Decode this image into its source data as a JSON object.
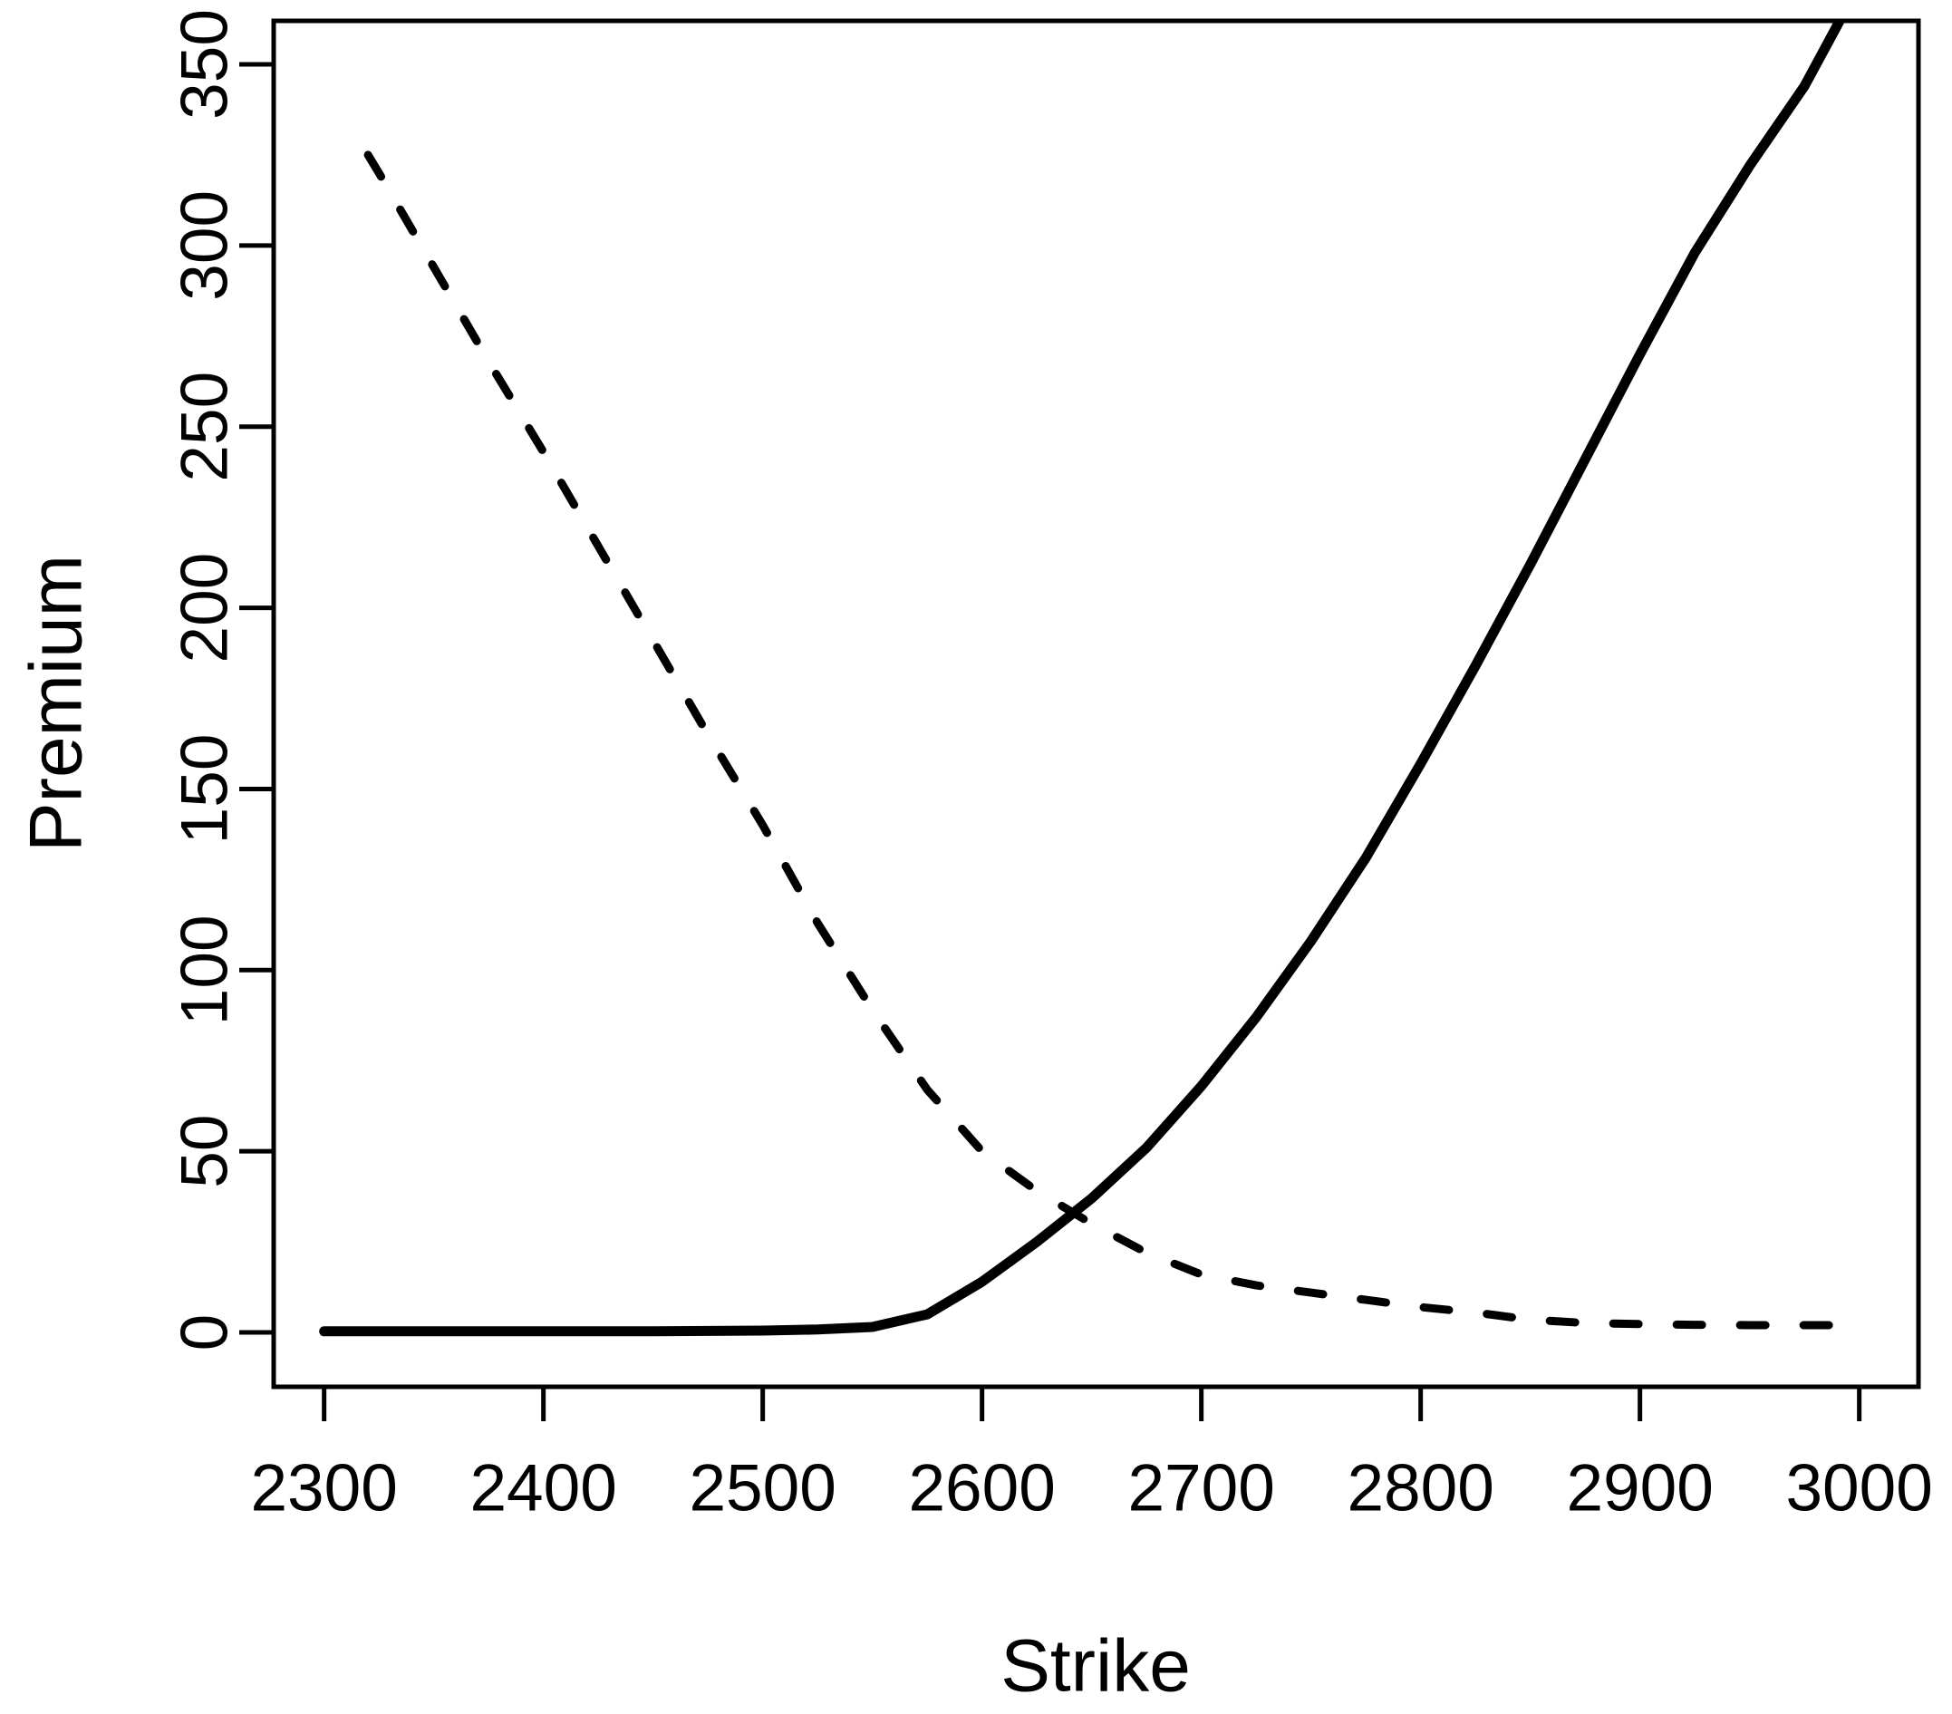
{
  "chart_data": {
    "type": "line",
    "title": "",
    "xlabel": "Strike",
    "ylabel": "Premium",
    "x_ticks": [
      2300,
      2400,
      2500,
      2600,
      2700,
      2800,
      2900,
      3000
    ],
    "y_ticks": [
      0,
      50,
      100,
      150,
      200,
      250,
      300,
      350
    ],
    "xlim": [
      2277,
      3027
    ],
    "ylim": [
      -15,
      362
    ],
    "grid": false,
    "legend": "none",
    "background": "#ffffff",
    "line_color": "#000000",
    "series": [
      {
        "name": "solid-line",
        "style": "solid",
        "color": "#000000",
        "points": [
          [
            2300,
            0.3
          ],
          [
            2350,
            0.3
          ],
          [
            2400,
            0.3
          ],
          [
            2450,
            0.3
          ],
          [
            2500,
            0.5
          ],
          [
            2525,
            0.8
          ],
          [
            2550,
            1.5
          ],
          [
            2575,
            5
          ],
          [
            2600,
            14
          ],
          [
            2625,
            25
          ],
          [
            2650,
            37
          ],
          [
            2675,
            51
          ],
          [
            2700,
            68
          ],
          [
            2725,
            87
          ],
          [
            2750,
            108
          ],
          [
            2775,
            131
          ],
          [
            2800,
            157
          ],
          [
            2825,
            184
          ],
          [
            2850,
            212
          ],
          [
            2875,
            241
          ],
          [
            2900,
            270
          ],
          [
            2925,
            298
          ],
          [
            2950,
            322
          ],
          [
            2975,
            344
          ],
          [
            3000,
            372
          ]
        ]
      },
      {
        "name": "dashed-line",
        "style": "dashed",
        "color": "#000000",
        "points": [
          [
            2320,
            325
          ],
          [
            2325,
            320
          ],
          [
            2350,
            294
          ],
          [
            2375,
            268
          ],
          [
            2400,
            243
          ],
          [
            2425,
            217
          ],
          [
            2450,
            191
          ],
          [
            2475,
            165
          ],
          [
            2500,
            140
          ],
          [
            2525,
            113
          ],
          [
            2550,
            89
          ],
          [
            2575,
            67
          ],
          [
            2600,
            50
          ],
          [
            2625,
            39
          ],
          [
            2650,
            30
          ],
          [
            2675,
            22
          ],
          [
            2700,
            16
          ],
          [
            2725,
            13
          ],
          [
            2750,
            11
          ],
          [
            2775,
            9
          ],
          [
            2800,
            7
          ],
          [
            2825,
            5.5
          ],
          [
            2850,
            3.5
          ],
          [
            2875,
            2.6
          ],
          [
            2900,
            2.3
          ],
          [
            2925,
            2.1
          ],
          [
            2950,
            2
          ],
          [
            2975,
            2
          ],
          [
            3000,
            2
          ]
        ]
      }
    ]
  }
}
